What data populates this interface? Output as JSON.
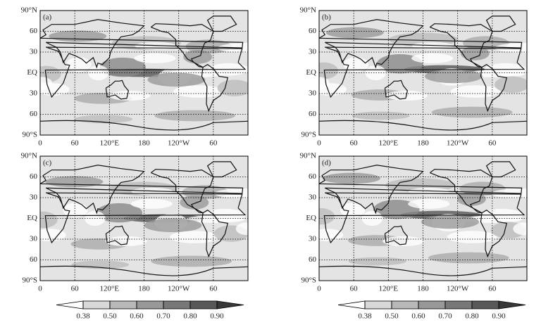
{
  "panels": [
    {
      "label": "(a)"
    },
    {
      "label": "(b)"
    },
    {
      "label": "(c)"
    },
    {
      "label": "(d)"
    }
  ],
  "lat_ticks": [
    {
      "value": 90,
      "label": "90°N"
    },
    60,
    {
      "value": 30,
      "label": "30"
    },
    {
      "value": 0,
      "label": "EQ"
    },
    {
      "value": -30,
      "label": "30"
    },
    {
      "value": -60,
      "label": "60"
    },
    {
      "value": -90,
      "label": "90°S"
    }
  ],
  "lon_ticks": [
    0,
    60,
    {
      "value": 120,
      "label": "120°E"
    },
    180,
    {
      "value": 240,
      "label": "120°W"
    },
    {
      "value": 300,
      "label": "60"
    }
  ],
  "colorbars": [
    {
      "levels": [
        0.38,
        {
          "value": 0.5,
          "label": "0.50"
        },
        {
          "value": 0.6,
          "label": "0.60"
        },
        {
          "value": 0.7,
          "label": "0.70"
        },
        {
          "value": 0.8,
          "label": "0.80"
        },
        {
          "value": 0.9,
          "label": "0.90"
        }
      ],
      "colors": [
        "#ffffff",
        "#d9d9d9",
        "#b8b8b8",
        "#989898",
        "#787878",
        "#585858",
        "#383838"
      ]
    },
    {
      "levels": [
        0.38,
        {
          "value": 0.5,
          "label": "0.50"
        },
        {
          "value": 0.6,
          "label": "0.60"
        },
        {
          "value": 0.7,
          "label": "0.70"
        },
        {
          "value": 0.8,
          "label": "0.80"
        },
        {
          "value": 0.9,
          "label": "0.90"
        }
      ],
      "colors": [
        "#ffffff",
        "#d9d9d9",
        "#b8b8b8",
        "#989898",
        "#787878",
        "#585858",
        "#383838"
      ]
    }
  ]
}
